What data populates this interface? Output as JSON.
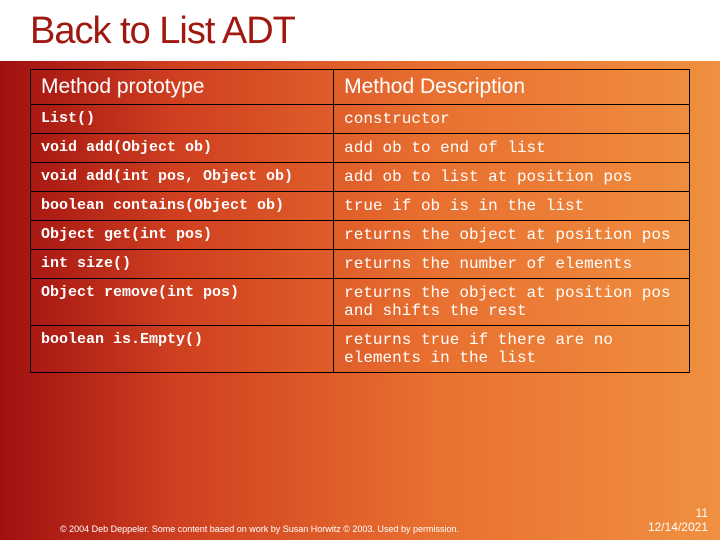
{
  "slide": {
    "title": "Back to List ADT",
    "headers": {
      "col1": "Method prototype",
      "col2": "Method Description"
    },
    "rows": [
      {
        "proto": "List()",
        "desc": "constructor"
      },
      {
        "proto": "void add(Object ob)",
        "desc": "add ob to end of list"
      },
      {
        "proto": "void add(int pos, Object ob)",
        "desc": "add ob to list at position pos"
      },
      {
        "proto": "boolean contains(Object ob)",
        "desc": "true if ob is in the list"
      },
      {
        "proto": "Object get(int pos)",
        "desc": "returns the object at position pos"
      },
      {
        "proto": "int size()",
        "desc": "returns the number of elements"
      },
      {
        "proto": "Object remove(int pos)",
        "desc": "returns the object at position pos and shifts the rest"
      },
      {
        "proto": "boolean is.Empty()",
        "desc": "returns true if there are no elements in the list"
      }
    ],
    "footer": "© 2004 Deb Deppeler.  Some content based on work by Susan Horwitz © 2003.  Used by permission.",
    "slidenum": "11",
    "date": "12/14/2021"
  },
  "style": {
    "title_color": "#a01810",
    "title_bg": "#ffffff",
    "text_color": "#ffffff",
    "border_color": "#000000",
    "gradient_from": "#a01010",
    "gradient_to": "#f09040",
    "title_fontsize": 38,
    "header_fontsize": 21,
    "proto_fontsize": 15,
    "desc_fontsize": 16
  }
}
